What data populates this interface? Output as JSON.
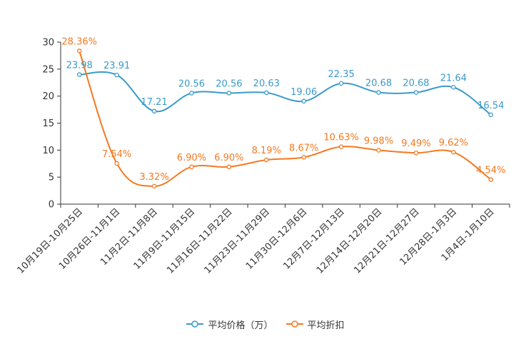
{
  "chart_data": {
    "type": "line",
    "categories": [
      "10月19日-10月25日",
      "10月26日-11月1日",
      "11月2日-11月8日",
      "11月9日-11月15日",
      "11月16日-11月22日",
      "11月23日-11月29日",
      "11月30日-12月6日",
      "12月7日-12月13日",
      "12月14日-12月20日",
      "12月21日-12月27日",
      "12月28日-1月3日",
      "1月4日-1月10日"
    ],
    "series": [
      {
        "name": "平均价格（万）",
        "color": "#3c9ac9",
        "values": [
          23.98,
          23.91,
          17.21,
          20.56,
          20.56,
          20.63,
          19.06,
          22.35,
          20.68,
          20.68,
          21.64,
          16.54
        ],
        "labels": [
          "23.98",
          "23.91",
          "17.21",
          "20.56",
          "20.56",
          "20.63",
          "19.06",
          "22.35",
          "20.68",
          "20.68",
          "21.64",
          "16.54"
        ]
      },
      {
        "name": "平均折扣",
        "color": "#f47920",
        "values": [
          28.36,
          7.54,
          3.32,
          6.9,
          6.9,
          8.19,
          8.67,
          10.63,
          9.98,
          9.49,
          9.62,
          4.54
        ],
        "labels": [
          "28.36%",
          "7.54%",
          "3.32%",
          "6.90%",
          "6.90%",
          "8.19%",
          "8.67%",
          "10.63%",
          "9.98%",
          "9.49%",
          "9.62%",
          "4.54%"
        ]
      }
    ],
    "yticks": [
      "0",
      "5",
      "10",
      "15",
      "20",
      "25",
      "30"
    ],
    "ylim": [
      0,
      30
    ],
    "title": "",
    "xlabel": "",
    "ylabel": "",
    "legend_position": "bottom-center"
  }
}
